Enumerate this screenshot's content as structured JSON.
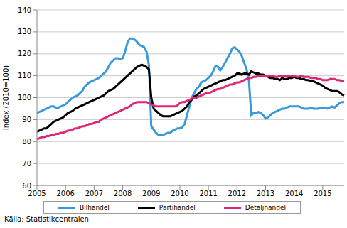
{
  "chart_data": {
    "type": "line",
    "y_label": "Index (2010=100)",
    "source": "Källa: Statistikcentralen",
    "categories": [
      "2005",
      null,
      null,
      null,
      null,
      null,
      null,
      null,
      null,
      null,
      null,
      null,
      "2006",
      null,
      null,
      null,
      null,
      null,
      null,
      null,
      null,
      null,
      null,
      null,
      "2007",
      null,
      null,
      null,
      null,
      null,
      null,
      null,
      null,
      null,
      null,
      null,
      "2008",
      null,
      null,
      null,
      null,
      null,
      null,
      null,
      null,
      null,
      null,
      null,
      "2009",
      null,
      null,
      null,
      null,
      null,
      null,
      null,
      null,
      null,
      null,
      null,
      "2010",
      null,
      null,
      null,
      null,
      null,
      null,
      null,
      null,
      null,
      null,
      null,
      "2011",
      null,
      null,
      null,
      null,
      null,
      null,
      null,
      null,
      null,
      null,
      null,
      "2012",
      null,
      null,
      null,
      null,
      null,
      null,
      null,
      null,
      null,
      null,
      null,
      "2013",
      null,
      null,
      null,
      null,
      null,
      null,
      null,
      null,
      null,
      null,
      null,
      "2014",
      null,
      null,
      null,
      null,
      null,
      null,
      null,
      null,
      null,
      null,
      null,
      "2015",
      null,
      null,
      null,
      null,
      null,
      null,
      null,
      null,
      null
    ],
    "series": [
      {
        "name": "Bilhandel",
        "color": "#3a9ad9",
        "values": [
          93,
          93.5,
          94,
          94.5,
          95,
          95.5,
          96,
          96,
          95.5,
          95.5,
          96,
          96.5,
          97,
          98,
          99,
          100,
          100.5,
          101,
          102,
          103,
          105,
          106,
          107,
          107.5,
          108,
          108.5,
          109,
          110,
          111,
          112,
          114,
          116,
          117,
          118,
          118,
          117.5,
          118,
          121,
          125,
          127,
          127,
          126.5,
          125.5,
          124,
          123.5,
          123,
          121,
          115,
          87,
          85.5,
          84,
          83,
          83,
          83,
          83.5,
          84,
          84,
          85,
          85.5,
          86,
          86,
          86.5,
          88,
          92,
          96,
          100,
          102,
          104,
          105,
          107,
          107.5,
          108,
          109,
          110,
          112,
          114.5,
          114,
          112.5,
          114,
          116,
          118,
          120,
          122.5,
          123,
          122,
          121,
          119,
          116,
          113,
          108,
          92,
          93,
          93,
          93.5,
          93,
          92,
          90.5,
          91,
          92,
          93,
          93.5,
          94,
          94.5,
          95,
          95,
          95.5,
          96,
          96,
          96,
          96,
          96,
          95.5,
          95,
          95,
          95,
          95.5,
          95,
          95,
          95,
          95.5,
          95.5,
          95.5,
          95,
          95.5,
          96,
          95.5,
          96.5,
          97.5,
          98,
          98
        ]
      },
      {
        "name": "Partihandel",
        "color": "#000000",
        "values": [
          84.5,
          85,
          85.5,
          86,
          86,
          87,
          88,
          89,
          89.5,
          90,
          90.5,
          91,
          92,
          93,
          93.5,
          94,
          95,
          95.5,
          96,
          96.5,
          97,
          97.5,
          98,
          98.5,
          99,
          99.5,
          100,
          100.5,
          101,
          102,
          103,
          103.5,
          104,
          105,
          106,
          107,
          108,
          109,
          110,
          111,
          112,
          113,
          114,
          114.5,
          115,
          114.5,
          114,
          113,
          100,
          95,
          94,
          93,
          92,
          91.5,
          91.5,
          91.5,
          91.5,
          92,
          92.5,
          93,
          93.5,
          94,
          95,
          96,
          98,
          99,
          100.5,
          101,
          102,
          103,
          104,
          104.5,
          105,
          105.5,
          106,
          106.5,
          107,
          107.5,
          108,
          108,
          108.5,
          109,
          109.5,
          110,
          111,
          111,
          110.5,
          111,
          111,
          110.5,
          112,
          111.5,
          111,
          111,
          110.5,
          110.5,
          110,
          109.5,
          109,
          109,
          108.5,
          108.5,
          108,
          109,
          108.5,
          108.5,
          109,
          109,
          109.5,
          109,
          109,
          108.5,
          108.5,
          108,
          108,
          107.5,
          107.5,
          107,
          106.5,
          106,
          105.5,
          104.5,
          104,
          103.5,
          103,
          103,
          103,
          102.5,
          101.5,
          101
        ]
      },
      {
        "name": "Detaljhandel",
        "color": "#e0267a",
        "values": [
          81,
          81.5,
          82,
          82,
          82.5,
          82.5,
          83,
          83,
          83.5,
          83.5,
          84,
          84,
          84.5,
          85,
          85,
          85.5,
          86,
          86,
          86.5,
          87,
          87,
          87.5,
          88,
          88,
          88.5,
          89,
          89,
          90,
          90.5,
          91,
          91.5,
          92,
          92.5,
          93,
          93.5,
          94,
          94.5,
          95,
          95.5,
          96,
          97,
          97.5,
          98,
          98,
          98,
          98,
          98,
          97.5,
          97,
          96.5,
          96,
          96,
          96,
          96,
          96,
          96,
          96,
          96,
          96,
          96.5,
          97.5,
          98,
          98,
          98.5,
          99,
          99.5,
          100,
          100,
          100.5,
          101,
          101.5,
          102,
          102,
          102.5,
          103,
          103.5,
          104,
          104,
          104.5,
          105,
          105.5,
          106,
          106,
          106.5,
          107,
          107,
          107.5,
          108,
          108.5,
          109,
          109,
          109.5,
          109.5,
          110,
          110,
          110,
          110,
          110,
          110,
          110,
          109.5,
          109.5,
          110,
          110,
          110,
          110,
          110,
          110,
          110,
          109.5,
          109.5,
          110,
          109.5,
          109.5,
          109.5,
          109,
          109,
          109,
          108.5,
          108.5,
          108,
          108,
          108,
          108.5,
          108.5,
          108.5,
          108,
          108,
          107.5,
          107.5
        ]
      }
    ],
    "ylim": [
      60,
      140
    ],
    "yticks": [
      60,
      70,
      80,
      90,
      100,
      110,
      120,
      130,
      140
    ],
    "grid": true,
    "legend": "bottom"
  }
}
